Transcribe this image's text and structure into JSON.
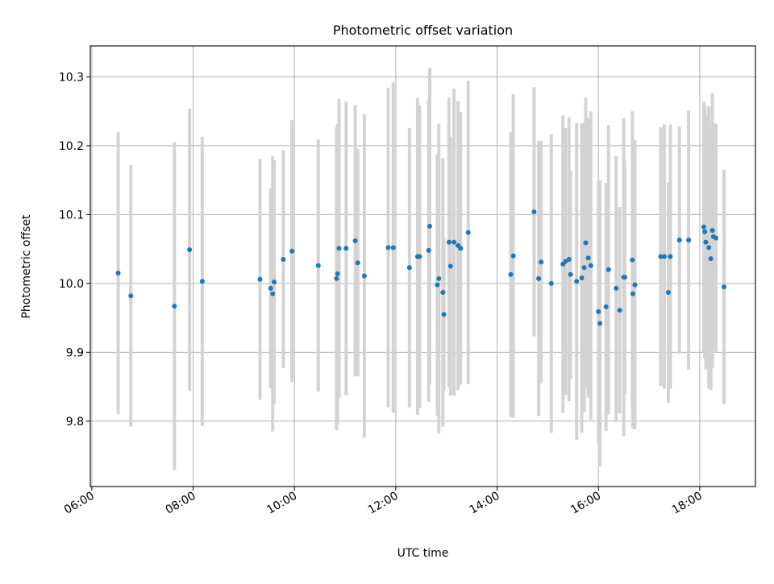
{
  "chart_data": {
    "type": "scatter",
    "title": "Photometric offset variation",
    "xlabel": "UTC time",
    "ylabel": "Photometric offset",
    "x_tick_labels": [
      "06:00",
      "08:00",
      "10:00",
      "12:00",
      "14:00",
      "16:00",
      "18:00"
    ],
    "x_tick_hours": [
      6,
      8,
      10,
      12,
      14,
      16,
      18
    ],
    "y_tick_labels": [
      "9.8",
      "9.9",
      "10.0",
      "10.1",
      "10.2",
      "10.3"
    ],
    "y_tick_values": [
      9.8,
      9.9,
      10.0,
      10.1,
      10.2,
      10.3
    ],
    "xlim_hours": [
      5.97,
      19.1
    ],
    "ylim": [
      9.705,
      10.345
    ],
    "grid": true,
    "point_color": "#1f77b4",
    "errorbar_color": "#d3d3d3",
    "series": [
      {
        "x_hours": [
          6.52,
          6.77,
          7.63,
          7.93,
          8.18,
          9.32,
          9.53,
          9.57,
          9.6,
          9.78,
          9.95,
          10.47,
          10.83,
          10.85,
          10.88,
          11.02,
          11.2,
          11.25,
          11.38,
          11.85,
          11.95,
          12.27,
          12.43,
          12.47,
          12.65,
          12.67,
          12.82,
          12.85,
          12.93,
          12.95,
          13.05,
          13.08,
          13.15,
          13.23,
          13.28,
          13.43,
          14.27,
          14.32,
          14.73,
          14.82,
          14.87,
          15.07,
          15.3,
          15.35,
          15.42,
          15.45,
          15.57,
          15.67,
          15.72,
          15.75,
          15.8,
          15.85,
          16.0,
          16.03,
          16.15,
          16.2,
          16.35,
          16.42,
          16.5,
          16.52,
          16.67,
          16.68,
          16.72,
          17.23,
          17.3,
          17.38,
          17.42,
          17.6,
          17.78,
          18.08,
          18.1,
          18.12,
          18.18,
          18.22,
          18.25,
          18.27,
          18.32,
          18.48
        ],
        "y": [
          10.015,
          9.982,
          9.967,
          10.049,
          10.003,
          10.006,
          9.993,
          9.985,
          10.002,
          10.035,
          10.047,
          10.026,
          10.007,
          10.014,
          10.051,
          10.051,
          10.062,
          10.03,
          10.011,
          10.052,
          10.052,
          10.023,
          10.039,
          10.039,
          10.048,
          10.083,
          9.998,
          10.007,
          9.987,
          9.955,
          10.06,
          10.025,
          10.06,
          10.055,
          10.051,
          10.074,
          10.013,
          10.04,
          10.104,
          10.007,
          10.031,
          10.0,
          10.028,
          10.032,
          10.035,
          10.013,
          10.003,
          10.008,
          10.023,
          10.059,
          10.037,
          10.026,
          9.959,
          9.942,
          9.966,
          10.02,
          9.993,
          9.961,
          10.009,
          10.009,
          10.034,
          9.985,
          9.998,
          10.039,
          10.039,
          9.987,
          10.039,
          10.063,
          10.063,
          10.082,
          10.075,
          10.06,
          10.052,
          10.036,
          10.077,
          10.068,
          10.066,
          9.995
        ],
        "yerr": [
          0.205,
          0.19,
          0.238,
          0.205,
          0.21,
          0.175,
          0.145,
          0.2,
          0.177,
          0.158,
          0.19,
          0.183,
          0.22,
          0.218,
          0.217,
          0.213,
          0.197,
          0.165,
          0.235,
          0.232,
          0.24,
          0.203,
          0.23,
          0.22,
          0.22,
          0.23,
          0.19,
          0.225,
          0.195,
          0.11,
          0.21,
          0.188,
          0.223,
          0.21,
          0.198,
          0.22,
          0.207,
          0.235,
          0.181,
          0.2,
          0.176,
          0.217,
          0.216,
          0.194,
          0.206,
          0.151,
          0.23,
          0.225,
          0.21,
          0.211,
          0.203,
          0.224,
          0.19,
          0.208,
          0.18,
          0.21,
          0.192,
          0.15,
          0.231,
          0.169,
          0.216,
          0.196,
          0.21,
          0.188,
          0.192,
          0.16,
          0.192,
          0.165,
          0.188,
          0.182,
          0.183,
          0.185,
          0.205,
          0.191,
          0.2,
          0.165,
          0.166,
          0.17
        ]
      }
    ]
  }
}
